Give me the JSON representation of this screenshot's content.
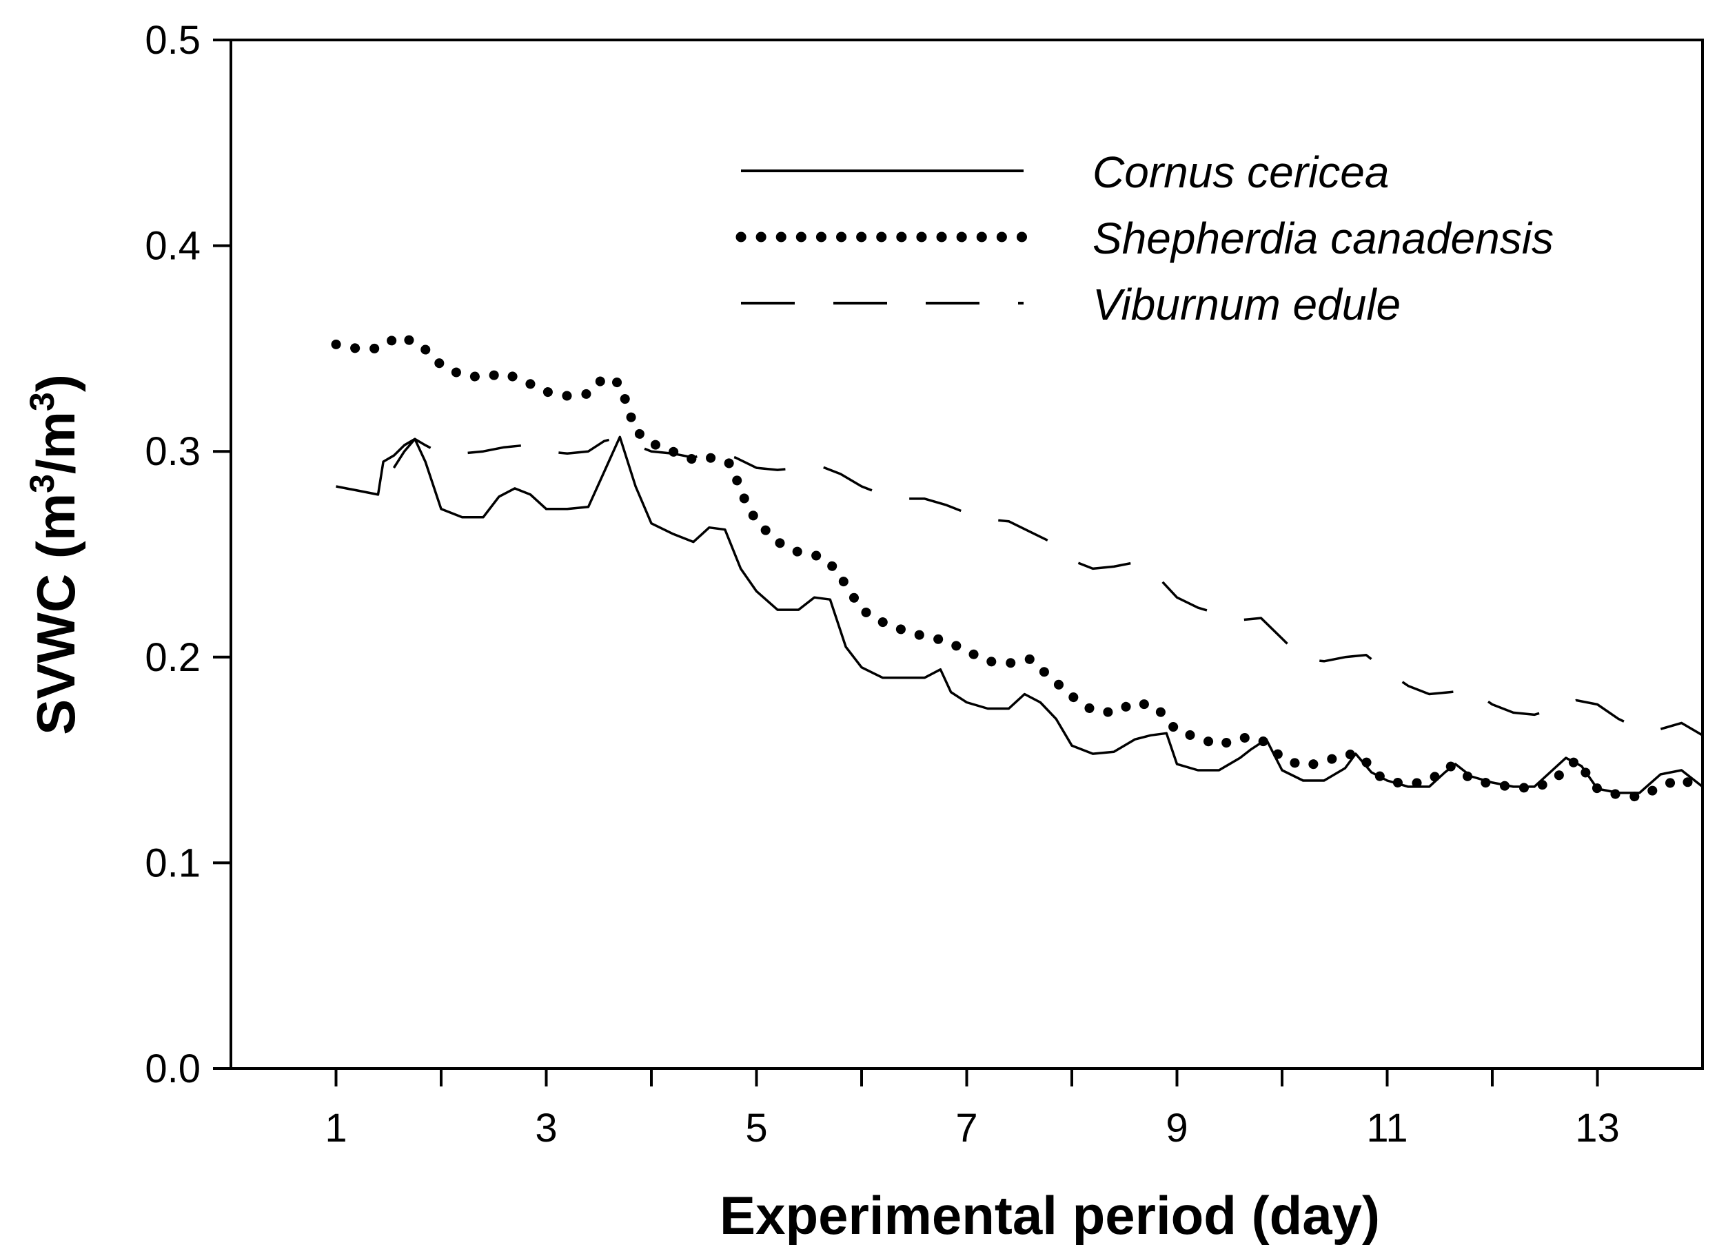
{
  "chart_data": {
    "type": "line",
    "title": "",
    "xlabel": "Experimental period (day)",
    "ylabel_main": "SVWC (m",
    "ylabel_sup1": "3",
    "ylabel_mid": "/m",
    "ylabel_sup2": "3",
    "ylabel_end": ")",
    "xlim": [
      0,
      14
    ],
    "ylim": [
      0.0,
      0.5
    ],
    "xticks_major": [
      1,
      3,
      5,
      7,
      9,
      11,
      13
    ],
    "xticks_minor": [
      2,
      4,
      6,
      8,
      10,
      12
    ],
    "yticks": [
      0.0,
      0.1,
      0.2,
      0.3,
      0.4,
      0.5
    ],
    "ytick_labels": [
      "0.0",
      "0.1",
      "0.2",
      "0.3",
      "0.4",
      "0.5"
    ],
    "grid": false,
    "legend_position": "top-right",
    "series": [
      {
        "name": "Cornus cericea",
        "style": "solid",
        "x": [
          1.0,
          1.2,
          1.4,
          1.45,
          1.55,
          1.65,
          1.75,
          1.85,
          2.0,
          2.2,
          2.4,
          2.55,
          2.7,
          2.85,
          3.0,
          3.2,
          3.4,
          3.55,
          3.7,
          3.85,
          4.0,
          4.2,
          4.4,
          4.55,
          4.7,
          4.85,
          5.0,
          5.2,
          5.4,
          5.55,
          5.7,
          5.85,
          6.0,
          6.2,
          6.4,
          6.6,
          6.75,
          6.85,
          7.0,
          7.2,
          7.4,
          7.55,
          7.7,
          7.85,
          8.0,
          8.2,
          8.4,
          8.6,
          8.75,
          8.9,
          9.0,
          9.2,
          9.4,
          9.6,
          9.7,
          9.85,
          10.0,
          10.2,
          10.4,
          10.6,
          10.7,
          10.85,
          11.0,
          11.2,
          11.4,
          11.55,
          11.65,
          11.8,
          12.0,
          12.2,
          12.4,
          12.55,
          12.7,
          12.85,
          13.0,
          13.2,
          13.4,
          13.6,
          13.8,
          14.0
        ],
        "values": [
          0.283,
          0.281,
          0.279,
          0.295,
          0.298,
          0.303,
          0.306,
          0.295,
          0.272,
          0.268,
          0.268,
          0.278,
          0.282,
          0.279,
          0.272,
          0.272,
          0.273,
          0.29,
          0.307,
          0.283,
          0.265,
          0.26,
          0.256,
          0.263,
          0.262,
          0.243,
          0.232,
          0.223,
          0.223,
          0.229,
          0.228,
          0.205,
          0.195,
          0.19,
          0.19,
          0.19,
          0.194,
          0.183,
          0.178,
          0.175,
          0.175,
          0.182,
          0.178,
          0.17,
          0.157,
          0.153,
          0.154,
          0.16,
          0.162,
          0.163,
          0.148,
          0.145,
          0.145,
          0.151,
          0.155,
          0.16,
          0.145,
          0.14,
          0.14,
          0.146,
          0.153,
          0.144,
          0.14,
          0.137,
          0.137,
          0.144,
          0.148,
          0.142,
          0.139,
          0.137,
          0.137,
          0.144,
          0.151,
          0.147,
          0.136,
          0.134,
          0.134,
          0.143,
          0.145,
          0.137
        ]
      },
      {
        "name": "Shepherdia canadensis",
        "style": "dotted",
        "x": [
          1.0,
          1.2,
          1.4,
          1.6,
          1.8,
          2.0,
          2.2,
          2.4,
          2.6,
          2.8,
          3.0,
          3.2,
          3.4,
          3.55,
          3.7,
          3.85,
          4.0,
          4.2,
          4.4,
          4.6,
          4.75,
          4.9,
          5.0,
          5.2,
          5.4,
          5.6,
          5.75,
          5.9,
          6.0,
          6.2,
          6.4,
          6.6,
          6.8,
          7.0,
          7.2,
          7.4,
          7.6,
          7.8,
          8.0,
          8.2,
          8.4,
          8.6,
          8.8,
          9.0,
          9.2,
          9.4,
          9.6,
          9.8,
          10.0,
          10.2,
          10.4,
          10.6,
          10.75,
          10.9,
          11.0,
          11.2,
          11.4,
          11.6,
          11.8,
          12.0,
          12.2,
          12.4,
          12.6,
          12.8,
          13.0,
          13.2,
          13.4,
          13.6,
          13.8,
          14.0
        ],
        "values": [
          0.352,
          0.35,
          0.35,
          0.356,
          0.352,
          0.342,
          0.337,
          0.336,
          0.338,
          0.334,
          0.329,
          0.327,
          0.328,
          0.336,
          0.333,
          0.31,
          0.304,
          0.3,
          0.296,
          0.297,
          0.294,
          0.275,
          0.266,
          0.256,
          0.251,
          0.249,
          0.243,
          0.231,
          0.223,
          0.217,
          0.213,
          0.21,
          0.208,
          0.203,
          0.198,
          0.197,
          0.199,
          0.19,
          0.181,
          0.174,
          0.173,
          0.178,
          0.176,
          0.164,
          0.161,
          0.157,
          0.161,
          0.16,
          0.151,
          0.147,
          0.149,
          0.153,
          0.152,
          0.143,
          0.14,
          0.138,
          0.14,
          0.147,
          0.141,
          0.138,
          0.137,
          0.136,
          0.141,
          0.15,
          0.136,
          0.133,
          0.132,
          0.137,
          0.141,
          0.135
        ]
      },
      {
        "name": "Viburnum edule",
        "style": "dashed",
        "x": [
          1.55,
          1.65,
          1.75,
          1.85,
          2.0,
          2.2,
          2.4,
          2.6,
          2.8,
          3.0,
          3.2,
          3.4,
          3.55,
          3.7,
          3.85,
          4.0,
          4.2,
          4.4,
          4.6,
          4.8,
          5.0,
          5.2,
          5.4,
          5.6,
          5.8,
          6.0,
          6.2,
          6.4,
          6.6,
          6.8,
          7.0,
          7.2,
          7.4,
          7.6,
          7.8,
          8.0,
          8.2,
          8.4,
          8.6,
          8.8,
          9.0,
          9.2,
          9.4,
          9.6,
          9.8,
          10.0,
          10.2,
          10.4,
          10.6,
          10.8,
          11.0,
          11.2,
          11.4,
          11.6,
          11.8,
          12.0,
          12.2,
          12.4,
          12.6,
          12.8,
          13.0,
          13.2,
          13.4,
          13.6,
          13.8,
          14.0
        ],
        "values": [
          0.292,
          0.3,
          0.306,
          0.303,
          0.299,
          0.299,
          0.3,
          0.302,
          0.303,
          0.3,
          0.299,
          0.3,
          0.305,
          0.307,
          0.303,
          0.3,
          0.299,
          0.297,
          0.3,
          0.297,
          0.292,
          0.291,
          0.292,
          0.293,
          0.289,
          0.283,
          0.279,
          0.277,
          0.277,
          0.274,
          0.27,
          0.267,
          0.266,
          0.261,
          0.256,
          0.247,
          0.243,
          0.244,
          0.246,
          0.24,
          0.229,
          0.224,
          0.221,
          0.218,
          0.219,
          0.209,
          0.199,
          0.198,
          0.2,
          0.201,
          0.193,
          0.186,
          0.182,
          0.183,
          0.184,
          0.177,
          0.173,
          0.172,
          0.175,
          0.179,
          0.177,
          0.17,
          0.165,
          0.165,
          0.168,
          0.162
        ]
      }
    ]
  }
}
